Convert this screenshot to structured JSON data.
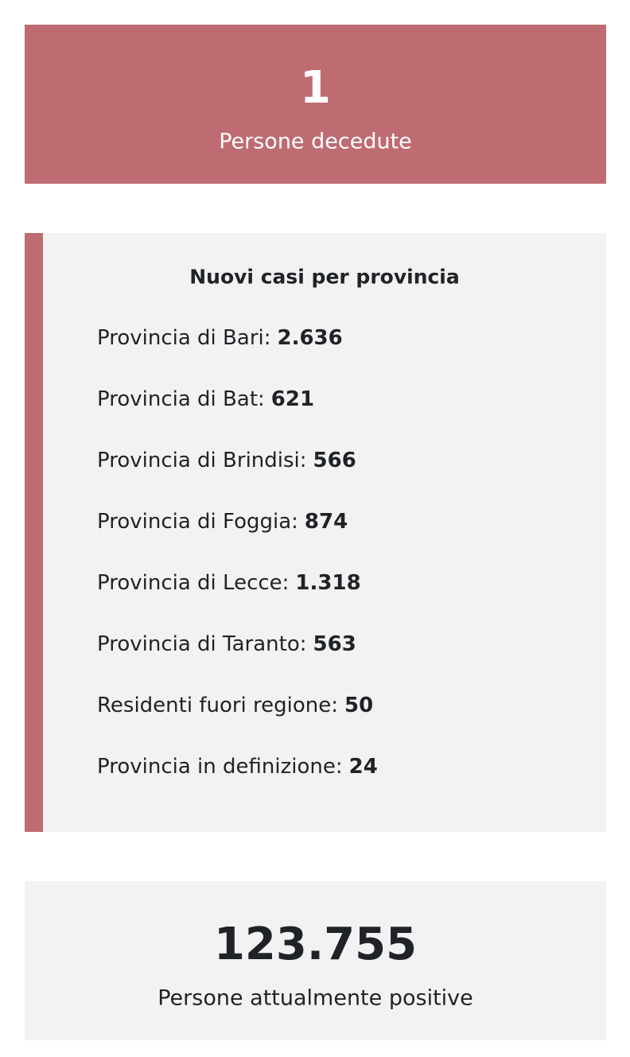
{
  "deaths_card": {
    "value": "1",
    "caption": "Persone decedute",
    "background_color": "#be6b72",
    "text_color": "#ffffff"
  },
  "provinces_panel": {
    "title": "Nuovi casi per provincia",
    "accent_color": "#be6b72",
    "background_color": "#f2f2f2",
    "items": [
      {
        "label": "Provincia di Bari:",
        "value": "2.636"
      },
      {
        "label": "Provincia di Bat:",
        "value": "621"
      },
      {
        "label": "Provincia di Brindisi:",
        "value": "566"
      },
      {
        "label": "Provincia di Foggia:",
        "value": "874"
      },
      {
        "label": "Provincia di Lecce:",
        "value": "1.318"
      },
      {
        "label": "Provincia di Taranto:",
        "value": "563"
      },
      {
        "label": "Residenti fuori regione:",
        "value": "50"
      },
      {
        "label": "Provincia in definizione:",
        "value": "24"
      }
    ]
  },
  "positive_card": {
    "value": "123.755",
    "caption": "Persone attualmente positive",
    "background_color": "#f2f2f2",
    "text_color": "#1f2226"
  }
}
